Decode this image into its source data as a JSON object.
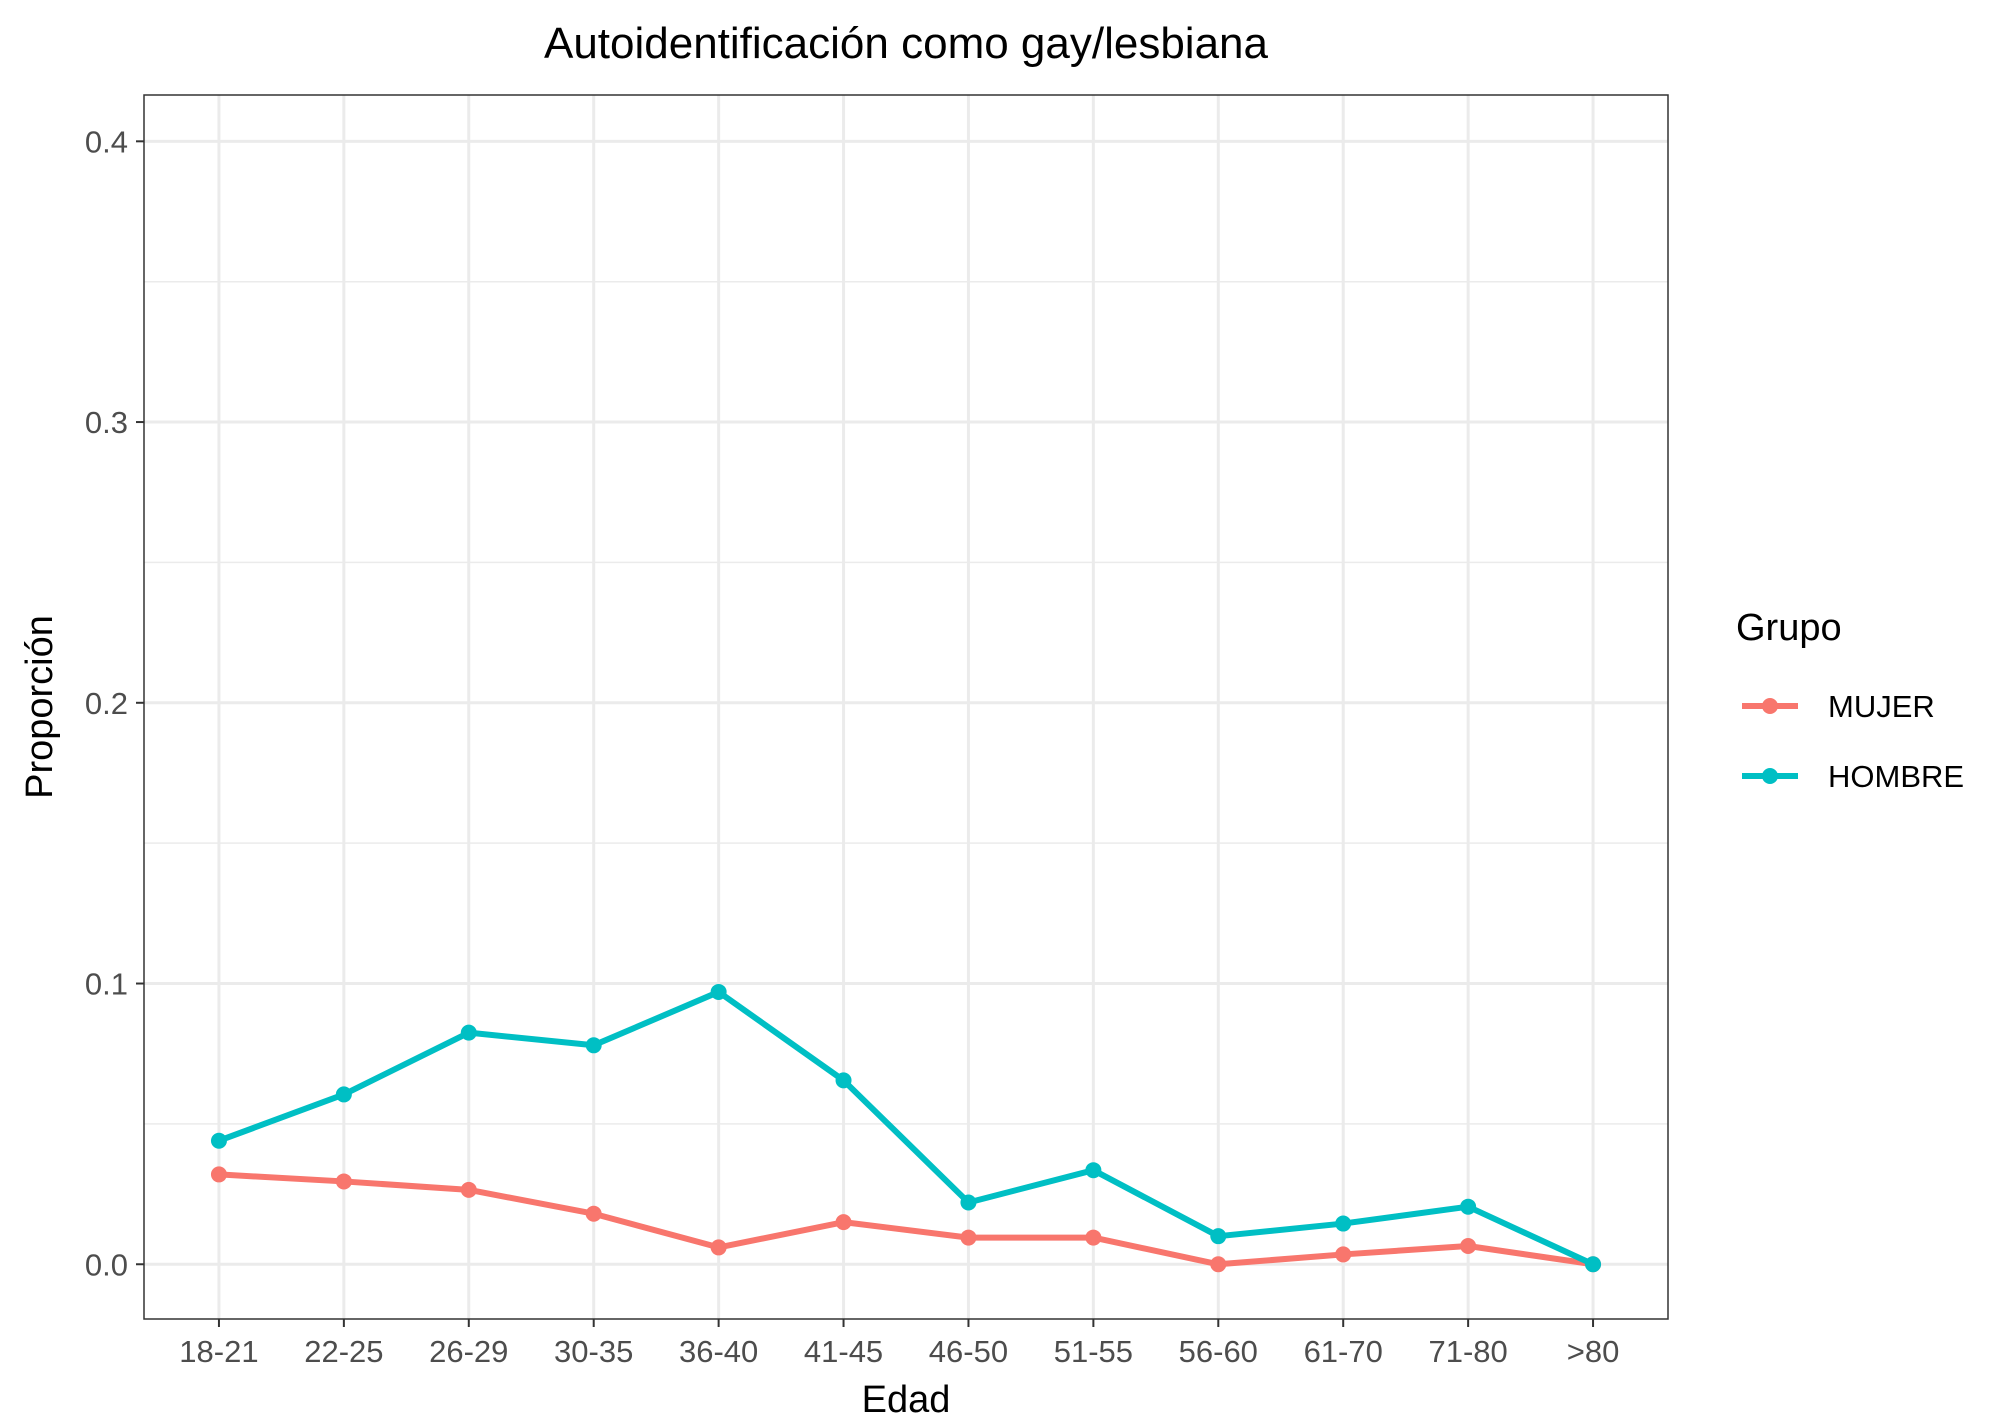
{
  "chart_data": {
    "type": "line",
    "title": "Autoidentificación como gay/lesbiana",
    "xlabel": "Edad",
    "ylabel": "Proporción",
    "categories": [
      "18-21",
      "22-25",
      "26-29",
      "30-35",
      "36-40",
      "41-45",
      "46-50",
      "51-55",
      "56-60",
      "61-70",
      "71-80",
      ">80"
    ],
    "ylim": [
      -0.0195,
      0.4165
    ],
    "yticks": [
      0.0,
      0.1,
      0.2,
      0.3,
      0.4
    ],
    "ytick_labels": [
      "0.0",
      "0.1",
      "0.2",
      "0.3",
      "0.4"
    ],
    "grid": true,
    "legend": {
      "title": "Grupo",
      "position": "right"
    },
    "series": [
      {
        "name": "MUJER",
        "color": "#f8766d",
        "values": [
          0.032,
          0.0295,
          0.0265,
          0.018,
          0.006,
          0.015,
          0.0095,
          0.0095,
          0.0,
          0.0035,
          0.0065,
          0.0
        ]
      },
      {
        "name": "HOMBRE",
        "color": "#00bfc4",
        "values": [
          0.044,
          0.0605,
          0.0825,
          0.078,
          0.097,
          0.0655,
          0.022,
          0.0335,
          0.01,
          0.0145,
          0.0205,
          0.0
        ]
      }
    ]
  }
}
